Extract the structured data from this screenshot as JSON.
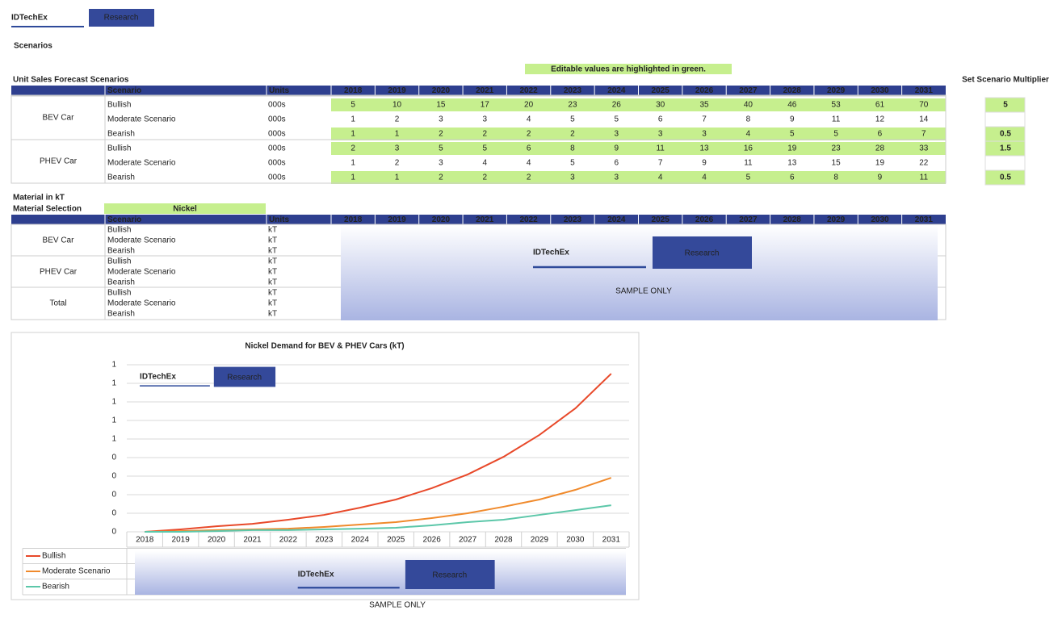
{
  "header": {
    "brand": "IDTechEx",
    "brand_tag": "Research",
    "title": "Scenarios"
  },
  "note": "Editable values are highlighted in green.",
  "sales_table": {
    "title": "Unit Sales Forecast Scenarios",
    "multiplier_title": "Set Scenario Multiplier",
    "columns": [
      "Scenario",
      "Units",
      "2018",
      "2019",
      "2020",
      "2021",
      "2022",
      "2023",
      "2024",
      "2025",
      "2026",
      "2027",
      "2028",
      "2029",
      "2030",
      "2031"
    ],
    "groups": [
      {
        "name": "BEV Car",
        "rows": [
          {
            "scenario": "Bullish",
            "units": "000s",
            "values": [
              5,
              10,
              15,
              17,
              20,
              23,
              26,
              30,
              35,
              40,
              46,
              53,
              61,
              70
            ],
            "multiplier": 5
          },
          {
            "scenario": "Moderate Scenario",
            "units": "000s",
            "values": [
              1,
              2,
              3,
              3,
              4,
              5,
              5,
              6,
              7,
              8,
              9,
              11,
              12,
              14
            ]
          },
          {
            "scenario": "Bearish",
            "units": "000s",
            "values": [
              1,
              1,
              2,
              2,
              2,
              2,
              3,
              3,
              3,
              4,
              5,
              5,
              6,
              7
            ],
            "multiplier": 0.5
          }
        ]
      },
      {
        "name": "PHEV Car",
        "rows": [
          {
            "scenario": "Bullish",
            "units": "000s",
            "values": [
              2,
              3,
              5,
              5,
              6,
              8,
              9,
              11,
              13,
              16,
              19,
              23,
              28,
              33
            ],
            "multiplier": 1.5
          },
          {
            "scenario": "Moderate Scenario",
            "units": "000s",
            "values": [
              1,
              2,
              3,
              4,
              4,
              5,
              6,
              7,
              9,
              11,
              13,
              15,
              19,
              22
            ]
          },
          {
            "scenario": "Bearish",
            "units": "000s",
            "values": [
              1,
              1,
              2,
              2,
              2,
              3,
              3,
              4,
              4,
              5,
              6,
              8,
              9,
              11
            ],
            "multiplier": 0.5
          }
        ]
      }
    ]
  },
  "material_table": {
    "title": "Material in kT",
    "selection_label": "Material Selection",
    "selection": "Nickel",
    "columns": [
      "Scenario",
      "Units",
      "2018",
      "2019",
      "2020",
      "2021",
      "2022",
      "2023",
      "2024",
      "2025",
      "2026",
      "2027",
      "2028",
      "2029",
      "2030",
      "2031"
    ],
    "groups": [
      {
        "name": "BEV Car",
        "rows": [
          {
            "scenario": "Bullish",
            "units": "kT"
          },
          {
            "scenario": "Moderate Scenario",
            "units": "kT"
          },
          {
            "scenario": "Bearish",
            "units": "kT"
          }
        ]
      },
      {
        "name": "PHEV Car",
        "rows": [
          {
            "scenario": "Bullish",
            "units": "kT"
          },
          {
            "scenario": "Moderate Scenario",
            "units": "kT"
          },
          {
            "scenario": "Bearish",
            "units": "kT"
          }
        ]
      },
      {
        "name": "Total",
        "rows": [
          {
            "scenario": "Bullish",
            "units": "kT"
          },
          {
            "scenario": "Moderate Scenario",
            "units": "kT"
          },
          {
            "scenario": "Bearish",
            "units": "kT"
          }
        ]
      }
    ]
  },
  "watermark": {
    "brand": "IDTechEx",
    "tag": "Research",
    "text": "SAMPLE ONLY"
  },
  "chart_data": {
    "type": "line",
    "title": "Nickel Demand for BEV & PHEV Cars (kT)",
    "categories": [
      "2018",
      "2019",
      "2020",
      "2021",
      "2022",
      "2023",
      "2024",
      "2025",
      "2026",
      "2027",
      "2028",
      "2029",
      "2030",
      "2031"
    ],
    "series": [
      {
        "name": "Bullish",
        "color": "#e8492a",
        "values": [
          0,
          0.013,
          0.03,
          0.043,
          0.065,
          0.091,
          0.13,
          0.174,
          0.235,
          0.309,
          0.404,
          0.522,
          0.665,
          0.852
        ]
      },
      {
        "name": "Moderate Scenario",
        "color": "#f08a2c",
        "values": [
          0,
          0.004,
          0.009,
          0.013,
          0.017,
          0.026,
          0.039,
          0.052,
          0.074,
          0.1,
          0.135,
          0.174,
          0.226,
          0.291
        ]
      },
      {
        "name": "Bearish",
        "color": "#5cc7a9",
        "values": [
          0,
          0,
          0.004,
          0.009,
          0.009,
          0.013,
          0.017,
          0.022,
          0.035,
          0.052,
          0.065,
          0.091,
          0.117,
          0.143
        ]
      }
    ],
    "ylim": [
      0,
      0.9
    ],
    "yticks": [
      {
        "value": 0,
        "label": "0"
      },
      {
        "value": 0.1,
        "label": "0"
      },
      {
        "value": 0.2,
        "label": "0"
      },
      {
        "value": 0.3,
        "label": "0"
      },
      {
        "value": 0.4,
        "label": "0"
      },
      {
        "value": 0.5,
        "label": "1"
      },
      {
        "value": 0.6,
        "label": "1"
      },
      {
        "value": 0.7,
        "label": "1"
      },
      {
        "value": 0.8,
        "label": "1"
      },
      {
        "value": 0.9,
        "label": "1"
      }
    ],
    "grid": true,
    "legend": "bottom-left"
  }
}
